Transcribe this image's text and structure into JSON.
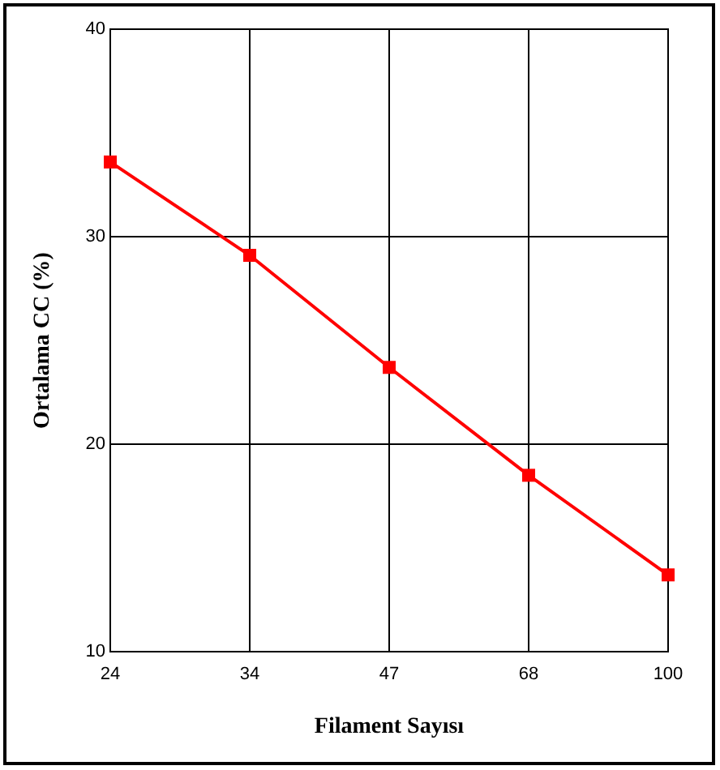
{
  "chart_data": {
    "type": "line",
    "xlabel": "Filament Sayısı",
    "ylabel": "Ortalama CC (%)",
    "categories": [
      "24",
      "34",
      "47",
      "68",
      "100"
    ],
    "series": [
      {
        "color": "#ff0000",
        "values": [
          33.6,
          29.1,
          23.7,
          18.5,
          13.7
        ]
      }
    ],
    "ylim": [
      10,
      40
    ],
    "yticks": [
      10,
      20,
      30,
      40
    ],
    "grid": true,
    "marker": "square",
    "line_style": "solid"
  }
}
